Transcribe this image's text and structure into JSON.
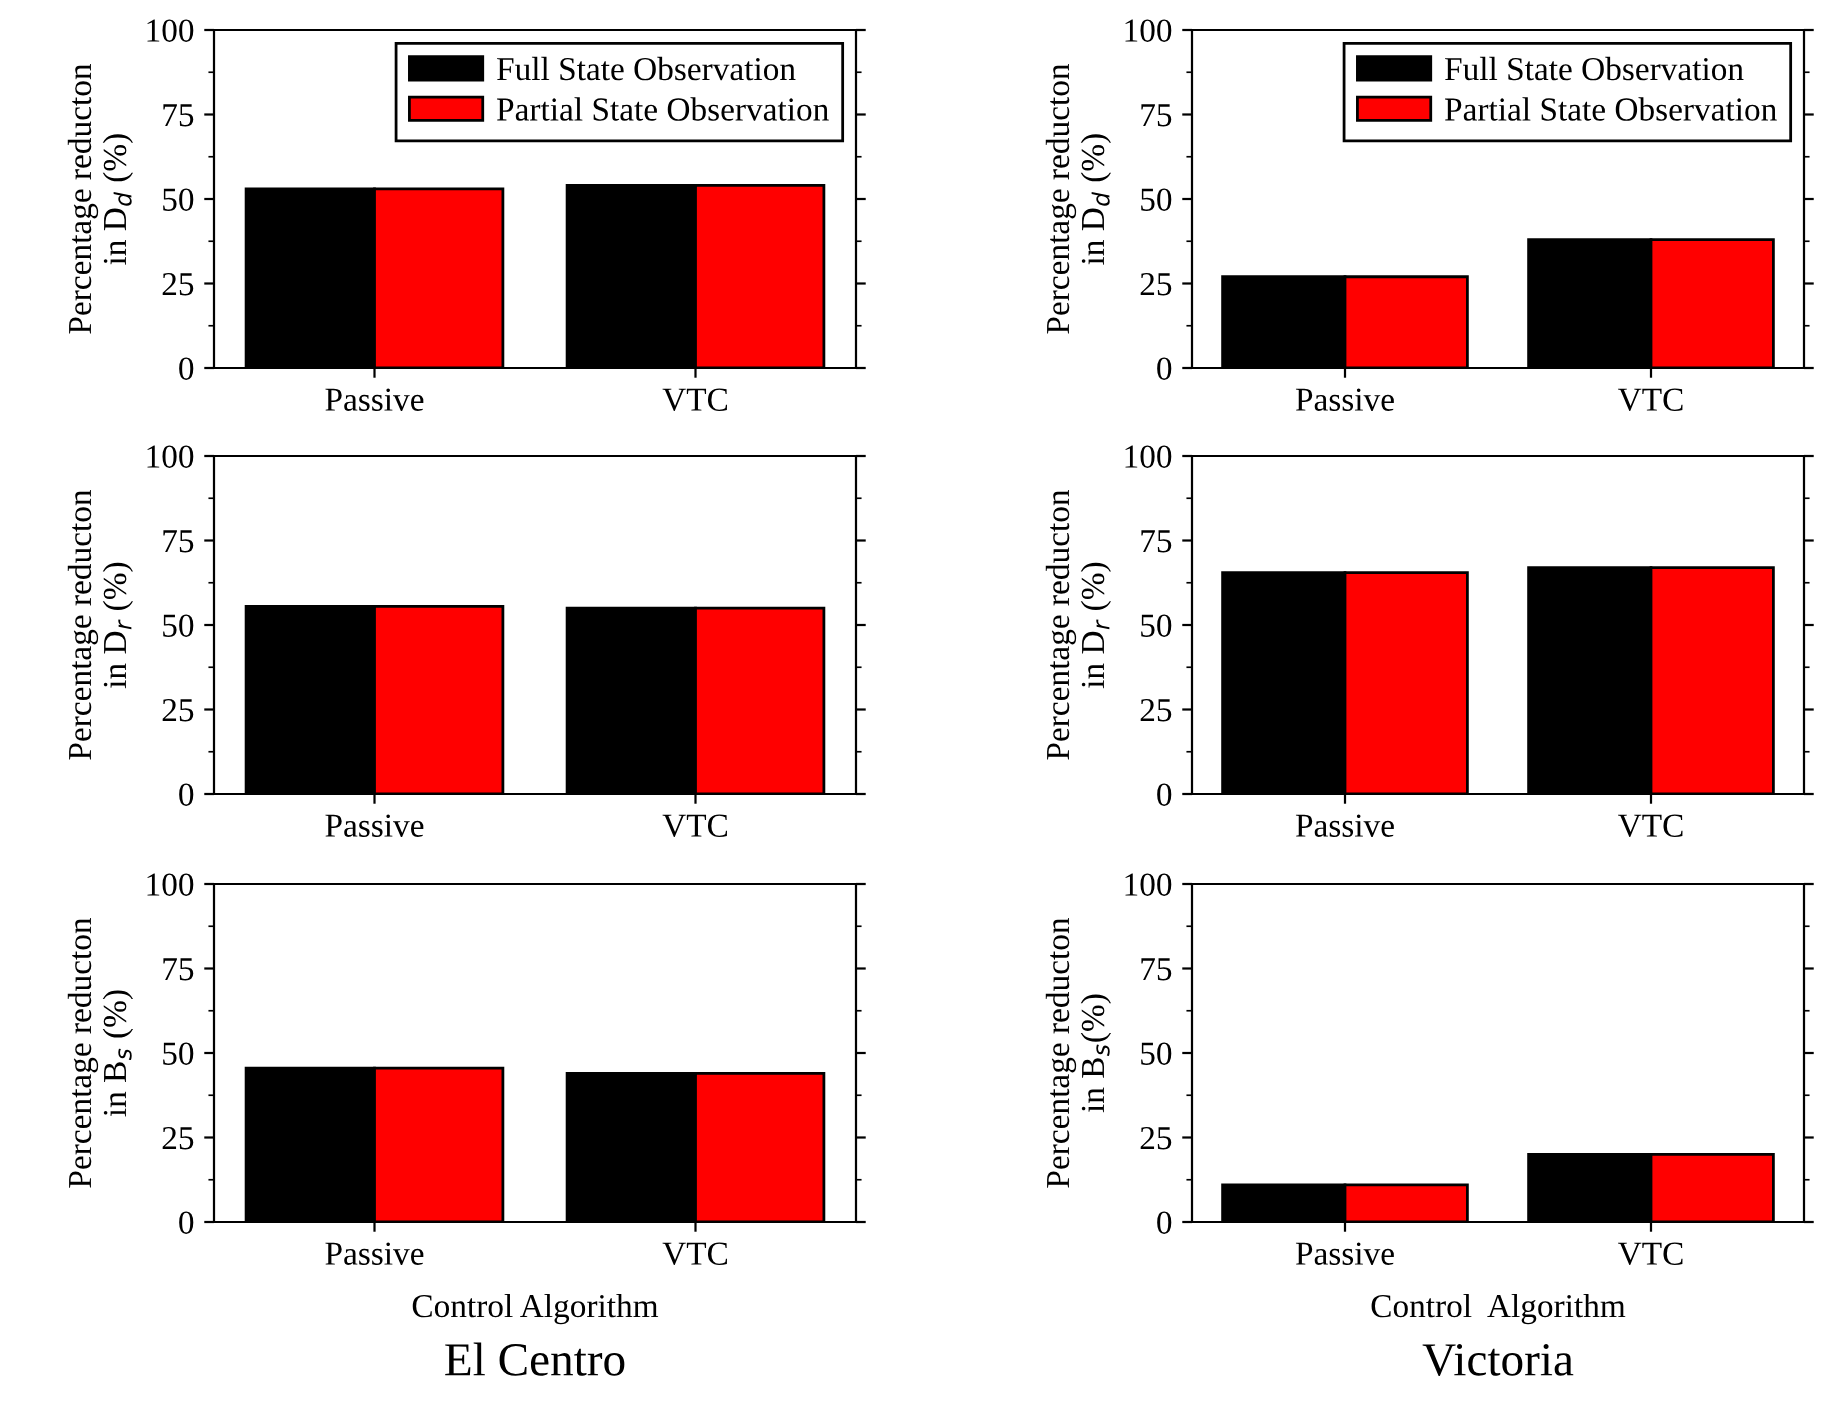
{
  "chart_data": [
    {
      "type": "bar",
      "categories": [
        "Passive",
        "VTC"
      ],
      "ylabel": "Percentage reducton\nin D$_{d}$ (%)",
      "ylim": [
        0,
        100
      ],
      "yticks": [
        0,
        25,
        50,
        75,
        100
      ],
      "grid": false,
      "legend": "top right",
      "series": [
        {
          "name": "Full State Observation",
          "color": "#000000",
          "values": [
            53,
            54
          ]
        },
        {
          "name": "Partial State Observation",
          "color": "#ff0000",
          "values": [
            53,
            54
          ]
        }
      ]
    },
    {
      "type": "bar",
      "categories": [
        "Passive",
        "VTC"
      ],
      "ylabel": "Percentage reducton\nin D$_{d}$ (%)",
      "ylim": [
        0,
        100
      ],
      "yticks": [
        0,
        25,
        50,
        75,
        100
      ],
      "grid": false,
      "legend": "top right",
      "series": [
        {
          "name": "Full State Observation",
          "color": "#000000",
          "values": [
            27,
            38
          ]
        },
        {
          "name": "Partial State Observation",
          "color": "#ff0000",
          "values": [
            27,
            38
          ]
        }
      ]
    },
    {
      "type": "bar",
      "categories": [
        "Passive",
        "VTC"
      ],
      "ylabel": "Percentage reducton\nin D$_{r}$ (%)",
      "ylim": [
        0,
        100
      ],
      "yticks": [
        0,
        25,
        50,
        75,
        100
      ],
      "grid": false,
      "series": [
        {
          "color": "#000000",
          "values": [
            55.5,
            55
          ]
        },
        {
          "color": "#ff0000",
          "values": [
            55.5,
            55
          ]
        }
      ]
    },
    {
      "type": "bar",
      "categories": [
        "Passive",
        "VTC"
      ],
      "ylabel": "Percentage reducton\nin D$_{r}$ (%)",
      "ylim": [
        0,
        100
      ],
      "yticks": [
        0,
        25,
        50,
        75,
        100
      ],
      "grid": false,
      "series": [
        {
          "color": "#000000",
          "values": [
            65.5,
            67
          ]
        },
        {
          "color": "#ff0000",
          "values": [
            65.5,
            67
          ]
        }
      ]
    },
    {
      "type": "bar",
      "categories": [
        "Passive",
        "VTC"
      ],
      "ylabel": "Percentage reducton\nin B$_{s}$ (%)",
      "xlabel": "Control Algorithm",
      "ylim": [
        0,
        100
      ],
      "yticks": [
        0,
        25,
        50,
        75,
        100
      ],
      "grid": false,
      "annotations": [
        "El Centro"
      ],
      "series": [
        {
          "color": "#000000",
          "values": [
            45.5,
            44
          ]
        },
        {
          "color": "#ff0000",
          "values": [
            45.5,
            44
          ]
        }
      ]
    },
    {
      "type": "bar",
      "categories": [
        "Passive",
        "VTC"
      ],
      "ylabel": "Percentage reducton\nin B$_{s}$(%)",
      "xlabel": "Control  Algorithm",
      "ylim": [
        0,
        100
      ],
      "yticks": [
        0,
        25,
        50,
        75,
        100
      ],
      "grid": false,
      "annotations": [
        "Victoria"
      ],
      "series": [
        {
          "color": "#000000",
          "values": [
            11,
            20
          ]
        },
        {
          "color": "#ff0000",
          "values": [
            11,
            20
          ]
        }
      ]
    }
  ]
}
